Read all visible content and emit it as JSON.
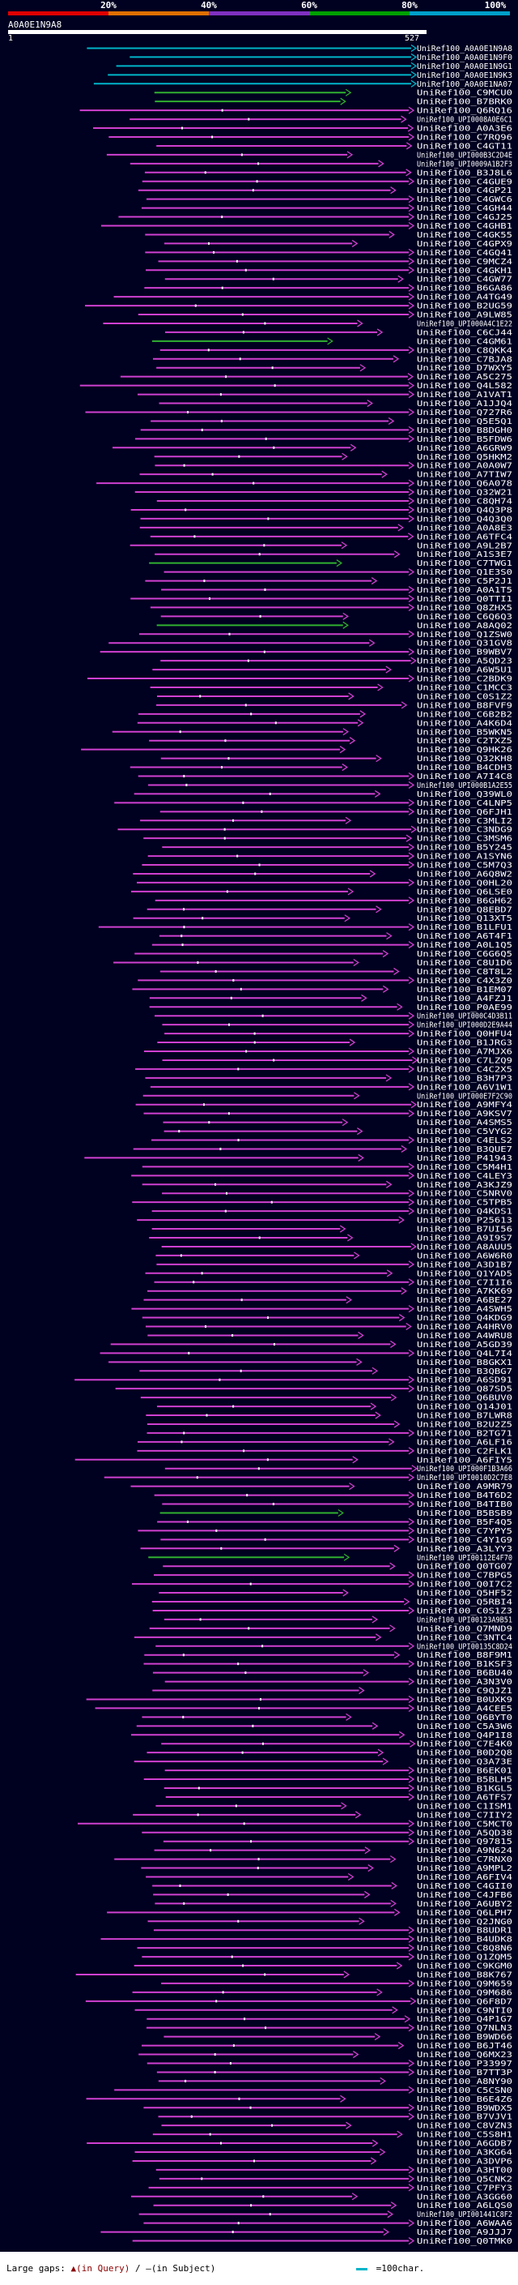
{
  "scale": {
    "segments": [
      {
        "color": "#e00000"
      },
      {
        "color": "#e07000"
      },
      {
        "color": "#8030c0"
      },
      {
        "color": "#00a000"
      },
      {
        "color": "#00a0c8"
      }
    ],
    "labels": [
      "20%",
      "40%",
      "60%",
      "80%",
      "100%"
    ]
  },
  "query": {
    "name": "A0A0E1N9A8",
    "start": "1",
    "end": "527"
  },
  "colors": {
    "best": "#00b4c8",
    "good": "#30b030",
    "mid": "#d040d0",
    "background": "#000020"
  },
  "hits": [
    {
      "name": "UniRef100_A0A0E1N9A8",
      "color": "best"
    },
    {
      "name": "UniRef100_A0A0E1N9F0",
      "color": "best"
    },
    {
      "name": "UniRef100_A0A0E1N9G1",
      "color": "best"
    },
    {
      "name": "UniRef100_A0A0E1N9K3",
      "color": "best"
    },
    {
      "name": "UniRef100_A0A0E1NA07",
      "color": "best"
    },
    {
      "name": "UniRef100_C9MCU0",
      "color": "good"
    },
    {
      "name": "UniRef100_B7BRK0",
      "color": "good"
    },
    {
      "name": "UniRef100_Q6RQ16",
      "color": "mid"
    },
    {
      "name": "UniRef100_UPI0008A0E6C1",
      "color": "mid"
    },
    {
      "name": "UniRef100_A0A3E6",
      "color": "mid"
    },
    {
      "name": "UniRef100_C7RQ96",
      "color": "mid"
    },
    {
      "name": "UniRef100_C4GT11",
      "color": "mid"
    },
    {
      "name": "UniRef100_UPI000B3C2D4E",
      "color": "mid"
    },
    {
      "name": "UniRef100_UPI0009A1B2F3",
      "color": "mid"
    },
    {
      "name": "UniRef100_B3J8L6",
      "color": "mid"
    },
    {
      "name": "UniRef100_C4GUE9",
      "color": "mid"
    },
    {
      "name": "UniRef100_C4GP21",
      "color": "mid"
    },
    {
      "name": "UniRef100_C4GWC6",
      "color": "mid"
    },
    {
      "name": "UniRef100_C4GH44",
      "color": "mid"
    },
    {
      "name": "UniRef100_C4GJ25",
      "color": "mid"
    },
    {
      "name": "UniRef100_C4GHB1",
      "color": "mid"
    },
    {
      "name": "UniRef100_C4GK55",
      "color": "mid"
    },
    {
      "name": "UniRef100_C4GPX9",
      "color": "mid"
    },
    {
      "name": "UniRef100_C4GQ41",
      "color": "mid"
    },
    {
      "name": "UniRef100_C9MCZ4",
      "color": "mid"
    },
    {
      "name": "UniRef100_C4GKH1",
      "color": "mid"
    },
    {
      "name": "UniRef100_C4GW77",
      "color": "mid"
    },
    {
      "name": "UniRef100_B6GA86",
      "color": "mid"
    },
    {
      "name": "UniRef100_A4TG49",
      "color": "mid"
    },
    {
      "name": "UniRef100_B2UG59",
      "color": "mid"
    },
    {
      "name": "UniRef100_A9LW85",
      "color": "mid"
    },
    {
      "name": "UniRef100_UPI000A4C1E22",
      "color": "mid"
    },
    {
      "name": "UniRef100_C6CJ44",
      "color": "mid"
    },
    {
      "name": "UniRef100_C4GM61",
      "color": "good"
    },
    {
      "name": "UniRef100_C8QKK4",
      "color": "mid"
    },
    {
      "name": "UniRef100_C7BJA8",
      "color": "mid"
    },
    {
      "name": "UniRef100_D7WXY5",
      "color": "mid"
    },
    {
      "name": "UniRef100_A5C275",
      "color": "mid"
    },
    {
      "name": "UniRef100_Q4L582",
      "color": "mid"
    },
    {
      "name": "UniRef100_A1VAT1",
      "color": "mid"
    },
    {
      "name": "UniRef100_A1JJQ4",
      "color": "mid"
    },
    {
      "name": "UniRef100_Q727R6",
      "color": "mid"
    },
    {
      "name": "UniRef100_Q5E5Q1",
      "color": "mid"
    },
    {
      "name": "UniRef100_B8DGH0",
      "color": "mid"
    },
    {
      "name": "UniRef100_B5FDW6",
      "color": "mid"
    },
    {
      "name": "UniRef100_A6GRW9",
      "color": "mid"
    },
    {
      "name": "UniRef100_Q5HKM2",
      "color": "mid"
    },
    {
      "name": "UniRef100_A0A0W7",
      "color": "mid"
    },
    {
      "name": "UniRef100_A7TIW7",
      "color": "mid"
    },
    {
      "name": "UniRef100_Q6A078",
      "color": "mid"
    },
    {
      "name": "UniRef100_Q32W21",
      "color": "mid"
    },
    {
      "name": "UniRef100_C8QH74",
      "color": "mid"
    },
    {
      "name": "UniRef100_Q4Q3P8",
      "color": "mid"
    },
    {
      "name": "UniRef100_Q4Q3Q0",
      "color": "mid"
    },
    {
      "name": "UniRef100_A0A8E3",
      "color": "mid"
    },
    {
      "name": "UniRef100_A6TFC4",
      "color": "mid"
    },
    {
      "name": "UniRef100_A9L2B7",
      "color": "mid"
    },
    {
      "name": "UniRef100_A1S3E7",
      "color": "mid"
    },
    {
      "name": "UniRef100_C7TWG1",
      "color": "good"
    },
    {
      "name": "UniRef100_Q1E3S0",
      "color": "mid"
    },
    {
      "name": "UniRef100_C5P2J1",
      "color": "mid"
    },
    {
      "name": "UniRef100_A0A1T5",
      "color": "mid"
    },
    {
      "name": "UniRef100_Q0TTI1",
      "color": "mid"
    },
    {
      "name": "UniRef100_Q8ZHX5",
      "color": "mid"
    },
    {
      "name": "UniRef100_C6Q6Q3",
      "color": "mid"
    },
    {
      "name": "UniRef100_A8AQ02",
      "color": "good"
    },
    {
      "name": "UniRef100_Q1ZSW0",
      "color": "mid"
    },
    {
      "name": "UniRef100_Q31GV8",
      "color": "mid"
    },
    {
      "name": "UniRef100_B9WBV7",
      "color": "mid"
    },
    {
      "name": "UniRef100_A5QD23",
      "color": "mid"
    },
    {
      "name": "UniRef100_A6W5U1",
      "color": "mid"
    },
    {
      "name": "UniRef100_C2BDK9",
      "color": "mid"
    },
    {
      "name": "UniRef100_C1MCC3",
      "color": "mid"
    },
    {
      "name": "UniRef100_C0S1Z2",
      "color": "mid"
    },
    {
      "name": "UniRef100_B8FVF9",
      "color": "mid"
    },
    {
      "name": "UniRef100_C6B2B2",
      "color": "mid"
    },
    {
      "name": "UniRef100_A4K6D4",
      "color": "mid"
    },
    {
      "name": "UniRef100_B5WKN5",
      "color": "mid"
    },
    {
      "name": "UniRef100_C2TXZ5",
      "color": "mid"
    },
    {
      "name": "UniRef100_Q9HK26",
      "color": "mid"
    },
    {
      "name": "UniRef100_Q32KH8",
      "color": "mid"
    },
    {
      "name": "UniRef100_B4CDH3",
      "color": "mid"
    },
    {
      "name": "UniRef100_A7I4C8",
      "color": "mid"
    },
    {
      "name": "UniRef100_UPI000B1A2E55",
      "color": "mid"
    },
    {
      "name": "UniRef100_Q39WL0",
      "color": "mid"
    },
    {
      "name": "UniRef100_C4LNP5",
      "color": "mid"
    },
    {
      "name": "UniRef100_Q6FJH1",
      "color": "mid"
    },
    {
      "name": "UniRef100_C3MLI2",
      "color": "mid"
    },
    {
      "name": "UniRef100_C3NDG9",
      "color": "mid"
    },
    {
      "name": "UniRef100_C3MSM6",
      "color": "mid"
    },
    {
      "name": "UniRef100_B5Y245",
      "color": "mid"
    },
    {
      "name": "UniRef100_A1SYN6",
      "color": "mid"
    },
    {
      "name": "UniRef100_C5M7Q3",
      "color": "mid"
    },
    {
      "name": "UniRef100_A6Q8W2",
      "color": "mid"
    },
    {
      "name": "UniRef100_Q0HL20",
      "color": "mid"
    },
    {
      "name": "UniRef100_Q6LSE0",
      "color": "mid"
    },
    {
      "name": "UniRef100_B6GH62",
      "color": "mid"
    },
    {
      "name": "UniRef100_Q8EBD7",
      "color": "mid"
    },
    {
      "name": "UniRef100_Q13XT5",
      "color": "mid"
    },
    {
      "name": "UniRef100_B1LFU1",
      "color": "mid"
    },
    {
      "name": "UniRef100_A6T4F1",
      "color": "mid"
    },
    {
      "name": "UniRef100_A0L1Q5",
      "color": "mid"
    },
    {
      "name": "UniRef100_C6G6Q5",
      "color": "mid"
    },
    {
      "name": "UniRef100_C8U1D6",
      "color": "mid"
    },
    {
      "name": "UniRef100_C8T8L2",
      "color": "mid"
    },
    {
      "name": "UniRef100_C4X3Z0",
      "color": "mid"
    },
    {
      "name": "UniRef100_B1EM07",
      "color": "mid"
    },
    {
      "name": "UniRef100_A4FZJ1",
      "color": "mid"
    },
    {
      "name": "UniRef100_P0AE99",
      "color": "mid"
    },
    {
      "name": "UniRef100_UPI000C4D3B11",
      "color": "mid"
    },
    {
      "name": "UniRef100_UPI000D2E9A44",
      "color": "mid"
    },
    {
      "name": "UniRef100_Q0HFU4",
      "color": "mid"
    },
    {
      "name": "UniRef100_B1JRG3",
      "color": "mid"
    },
    {
      "name": "UniRef100_A7MJX6",
      "color": "mid"
    },
    {
      "name": "UniRef100_C7LZQ9",
      "color": "mid"
    },
    {
      "name": "UniRef100_C4C2X5",
      "color": "mid"
    },
    {
      "name": "UniRef100_B3H7P3",
      "color": "mid"
    },
    {
      "name": "UniRef100_A6V1W1",
      "color": "mid"
    },
    {
      "name": "UniRef100_UPI000E7F2C90",
      "color": "mid"
    },
    {
      "name": "UniRef100_A9MFY4",
      "color": "mid"
    },
    {
      "name": "UniRef100_A9KSV7",
      "color": "mid"
    },
    {
      "name": "UniRef100_A4SMS5",
      "color": "mid"
    },
    {
      "name": "UniRef100_C5VYG2",
      "color": "mid"
    },
    {
      "name": "UniRef100_C4ELS2",
      "color": "mid"
    },
    {
      "name": "UniRef100_B3QUE7",
      "color": "mid"
    },
    {
      "name": "UniRef100_P41943",
      "color": "mid"
    },
    {
      "name": "UniRef100_C5M4H1",
      "color": "mid"
    },
    {
      "name": "UniRef100_C4LEY3",
      "color": "mid"
    },
    {
      "name": "UniRef100_A3KJZ9",
      "color": "mid"
    },
    {
      "name": "UniRef100_C5NRV0",
      "color": "mid"
    },
    {
      "name": "UniRef100_C5TPB5",
      "color": "mid"
    },
    {
      "name": "UniRef100_Q4KDS1",
      "color": "mid"
    },
    {
      "name": "UniRef100_P25613",
      "color": "mid"
    },
    {
      "name": "UniRef100_B7UI56",
      "color": "mid"
    },
    {
      "name": "UniRef100_A9I9S7",
      "color": "mid"
    },
    {
      "name": "UniRef100_A8AUU5",
      "color": "mid"
    },
    {
      "name": "UniRef100_A6W6R0",
      "color": "mid"
    },
    {
      "name": "UniRef100_A3D1B7",
      "color": "mid"
    },
    {
      "name": "UniRef100_Q1YAD5",
      "color": "mid"
    },
    {
      "name": "UniRef100_C7I1I6",
      "color": "mid"
    },
    {
      "name": "UniRef100_A7KK69",
      "color": "mid"
    },
    {
      "name": "UniRef100_A6BE27",
      "color": "mid"
    },
    {
      "name": "UniRef100_A4SWH5",
      "color": "mid"
    },
    {
      "name": "UniRef100_Q4KDG9",
      "color": "mid"
    },
    {
      "name": "UniRef100_A4HRV0",
      "color": "mid"
    },
    {
      "name": "UniRef100_A4WRU8",
      "color": "mid"
    },
    {
      "name": "UniRef100_A5GD39",
      "color": "mid"
    },
    {
      "name": "UniRef100_Q4L7I4",
      "color": "mid"
    },
    {
      "name": "UniRef100_B8GKX1",
      "color": "mid"
    },
    {
      "name": "UniRef100_B3QBG7",
      "color": "mid"
    },
    {
      "name": "UniRef100_A6SD91",
      "color": "mid"
    },
    {
      "name": "UniRef100_Q87SD5",
      "color": "mid"
    },
    {
      "name": "UniRef100_Q6BUV0",
      "color": "mid"
    },
    {
      "name": "UniRef100_Q14J01",
      "color": "mid"
    },
    {
      "name": "UniRef100_B7LWR8",
      "color": "mid"
    },
    {
      "name": "UniRef100_B2U2Z5",
      "color": "mid"
    },
    {
      "name": "UniRef100_B2TG71",
      "color": "mid"
    },
    {
      "name": "UniRef100_A6LF16",
      "color": "mid"
    },
    {
      "name": "UniRef100_C2FLK1",
      "color": "mid"
    },
    {
      "name": "UniRef100_A6FIY5",
      "color": "mid"
    },
    {
      "name": "UniRef100_UPI000F1B3A66",
      "color": "mid"
    },
    {
      "name": "UniRef100_UPI0010D2C7E8",
      "color": "mid"
    },
    {
      "name": "UniRef100_A9MR79",
      "color": "mid"
    },
    {
      "name": "UniRef100_B4T6D2",
      "color": "mid"
    },
    {
      "name": "UniRef100_B4TIB0",
      "color": "mid"
    },
    {
      "name": "UniRef100_B5BSB9",
      "color": "good"
    },
    {
      "name": "UniRef100_B5F4Q5",
      "color": "mid"
    },
    {
      "name": "UniRef100_C7YPY5",
      "color": "mid"
    },
    {
      "name": "UniRef100_C4Y1G9",
      "color": "mid"
    },
    {
      "name": "UniRef100_A3LYY3",
      "color": "mid"
    },
    {
      "name": "UniRef100_UPI00112E4F70",
      "color": "good"
    },
    {
      "name": "UniRef100_Q0TG07",
      "color": "mid"
    },
    {
      "name": "UniRef100_C7BPG5",
      "color": "mid"
    },
    {
      "name": "UniRef100_Q0I7C2",
      "color": "mid"
    },
    {
      "name": "UniRef100_Q5HF52",
      "color": "mid"
    },
    {
      "name": "UniRef100_Q5RBI4",
      "color": "mid"
    },
    {
      "name": "UniRef100_C0S1Z3",
      "color": "mid"
    },
    {
      "name": "UniRef100_UPI00123A9B51",
      "color": "mid"
    },
    {
      "name": "UniRef100_Q7MND9",
      "color": "mid"
    },
    {
      "name": "UniRef100_C3NTC4",
      "color": "mid"
    },
    {
      "name": "UniRef100_UPI00135C8D24",
      "color": "mid"
    },
    {
      "name": "UniRef100_B8F9M1",
      "color": "mid"
    },
    {
      "name": "UniRef100_B1KSF3",
      "color": "mid"
    },
    {
      "name": "UniRef100_B6BU40",
      "color": "mid"
    },
    {
      "name": "UniRef100_A3N3V0",
      "color": "mid"
    },
    {
      "name": "UniRef100_C9QJZ1",
      "color": "mid"
    },
    {
      "name": "UniRef100_B0UXK9",
      "color": "mid"
    },
    {
      "name": "UniRef100_A4CEE5",
      "color": "mid"
    },
    {
      "name": "UniRef100_Q6BYT0",
      "color": "mid"
    },
    {
      "name": "UniRef100_C5A3W6",
      "color": "mid"
    },
    {
      "name": "UniRef100_Q4P1I8",
      "color": "mid"
    },
    {
      "name": "UniRef100_C7E4K0",
      "color": "mid"
    },
    {
      "name": "UniRef100_B0D2Q8",
      "color": "mid"
    },
    {
      "name": "UniRef100_Q3A73E",
      "color": "mid"
    },
    {
      "name": "UniRef100_B6EK01",
      "color": "mid"
    },
    {
      "name": "UniRef100_B5BLH5",
      "color": "mid"
    },
    {
      "name": "UniRef100_B1KGL5",
      "color": "mid"
    },
    {
      "name": "UniRef100_A6TFS7",
      "color": "mid"
    },
    {
      "name": "UniRef100_C1ISM1",
      "color": "mid"
    },
    {
      "name": "UniRef100_C7IIY2",
      "color": "mid"
    },
    {
      "name": "UniRef100_C5MCT0",
      "color": "mid"
    },
    {
      "name": "UniRef100_A5QD38",
      "color": "mid"
    },
    {
      "name": "UniRef100_Q97815",
      "color": "mid"
    },
    {
      "name": "UniRef100_A9N624",
      "color": "mid"
    },
    {
      "name": "UniRef100_C7RNX0",
      "color": "mid"
    },
    {
      "name": "UniRef100_A9MPL2",
      "color": "mid"
    },
    {
      "name": "UniRef100_A6FIV4",
      "color": "mid"
    },
    {
      "name": "UniRef100_C4GII0",
      "color": "mid"
    },
    {
      "name": "UniRef100_C4JFB6",
      "color": "mid"
    },
    {
      "name": "UniRef100_A6UBY2",
      "color": "mid"
    },
    {
      "name": "UniRef100_Q6LPH7",
      "color": "mid"
    },
    {
      "name": "UniRef100_Q2JNG0",
      "color": "mid"
    },
    {
      "name": "UniRef100_B8UDR1",
      "color": "mid"
    },
    {
      "name": "UniRef100_B4UDK8",
      "color": "mid"
    },
    {
      "name": "UniRef100_C8Q8N6",
      "color": "mid"
    },
    {
      "name": "UniRef100_Q1ZQM5",
      "color": "mid"
    },
    {
      "name": "UniRef100_C9KGM0",
      "color": "mid"
    },
    {
      "name": "UniRef100_B8K767",
      "color": "mid"
    },
    {
      "name": "UniRef100_Q9M659",
      "color": "mid"
    },
    {
      "name": "UniRef100_Q9M686",
      "color": "mid"
    },
    {
      "name": "UniRef100_Q6F8D7",
      "color": "mid"
    },
    {
      "name": "UniRef100_C9NTI0",
      "color": "mid"
    },
    {
      "name": "UniRef100_Q4P1G7",
      "color": "mid"
    },
    {
      "name": "UniRef100_Q7NLN3",
      "color": "mid"
    },
    {
      "name": "UniRef100_B9WD66",
      "color": "mid"
    },
    {
      "name": "UniRef100_B6JT46",
      "color": "mid"
    },
    {
      "name": "UniRef100_Q6MX23",
      "color": "mid"
    },
    {
      "name": "UniRef100_P33997",
      "color": "mid"
    },
    {
      "name": "UniRef100_B7TT3P",
      "color": "mid"
    },
    {
      "name": "UniRef100_A8NY90",
      "color": "mid"
    },
    {
      "name": "UniRef100_C5CSN0",
      "color": "mid"
    },
    {
      "name": "UniRef100_B6E4Z6",
      "color": "mid"
    },
    {
      "name": "UniRef100_B9WDX5",
      "color": "mid"
    },
    {
      "name": "UniRef100_B7VJV1",
      "color": "mid"
    },
    {
      "name": "UniRef100_C8VZN3",
      "color": "mid"
    },
    {
      "name": "UniRef100_C5S8H1",
      "color": "mid"
    },
    {
      "name": "UniRef100_A6GDB7",
      "color": "mid"
    },
    {
      "name": "UniRef100_A3KG64",
      "color": "mid"
    },
    {
      "name": "UniRef100_A3DVP6",
      "color": "mid"
    },
    {
      "name": "UniRef100_A3HT00",
      "color": "mid"
    },
    {
      "name": "UniRef100_Q5CNK2",
      "color": "mid"
    },
    {
      "name": "UniRef100_C7PFY3",
      "color": "mid"
    },
    {
      "name": "UniRef100_A3GG60",
      "color": "mid"
    },
    {
      "name": "UniRef100_A6LQS0",
      "color": "mid"
    },
    {
      "name": "UniRef100_UPI001441C8F2",
      "color": "mid"
    },
    {
      "name": "UniRef100_A6WAA6",
      "color": "mid"
    },
    {
      "name": "UniRef100_A9JJJ7",
      "color": "mid"
    },
    {
      "name": "UniRef100_Q0TMK0",
      "color": "mid"
    }
  ],
  "footer": {
    "gaps_label": "Large gaps: ",
    "query_gap_label": "▲(in Query)",
    "separator": "/",
    "subject_gap_label": "—(in Subject)",
    "char_label": "=100char."
  }
}
